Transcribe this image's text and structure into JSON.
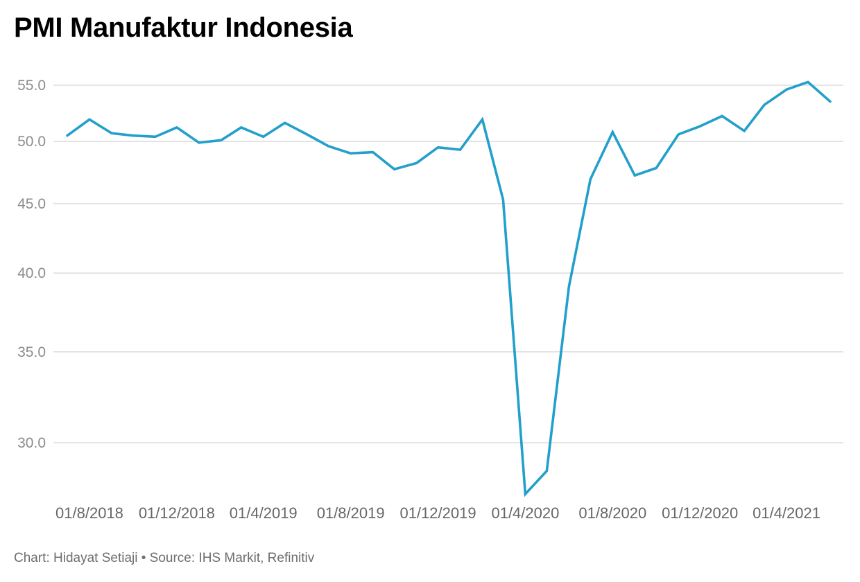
{
  "chart_data": {
    "type": "line",
    "title": "PMI Manufaktur Indonesia",
    "xlabel": "",
    "ylabel": "",
    "y_ticks": [
      55,
      50,
      45,
      40,
      35,
      30
    ],
    "y_tick_labels": [
      "55.0",
      "50.0",
      "45.0",
      "40.0",
      "35.0",
      "30.0"
    ],
    "ylim": [
      27,
      56
    ],
    "y_scale": "log",
    "grid": true,
    "legend": "none",
    "x": [
      "2018-07-01",
      "2018-08-01",
      "2018-09-01",
      "2018-10-01",
      "2018-11-01",
      "2018-12-01",
      "2019-01-01",
      "2019-02-01",
      "2019-03-01",
      "2019-04-01",
      "2019-05-01",
      "2019-06-01",
      "2019-07-01",
      "2019-08-01",
      "2019-09-01",
      "2019-10-01",
      "2019-11-01",
      "2019-12-01",
      "2020-01-01",
      "2020-02-01",
      "2020-03-01",
      "2020-04-01",
      "2020-05-01",
      "2020-06-01",
      "2020-07-01",
      "2020-08-01",
      "2020-09-01",
      "2020-10-01",
      "2020-11-01",
      "2020-12-01",
      "2021-01-01",
      "2021-02-01",
      "2021-03-01",
      "2021-04-01",
      "2021-05-01",
      "2021-06-01"
    ],
    "x_ticks": [
      "2018-08-01",
      "2018-12-01",
      "2019-04-01",
      "2019-08-01",
      "2019-12-01",
      "2020-04-01",
      "2020-08-01",
      "2020-12-01",
      "2021-04-01"
    ],
    "x_tick_labels": [
      "01/8/2018",
      "01/12/2018",
      "01/4/2019",
      "01/8/2019",
      "01/12/2019",
      "01/4/2020",
      "01/8/2020",
      "01/12/2020",
      "01/4/2021"
    ],
    "series": [
      {
        "color": "#229fcb",
        "values": [
          50.5,
          51.9,
          50.7,
          50.5,
          50.4,
          51.2,
          49.9,
          50.1,
          51.2,
          50.4,
          51.6,
          50.6,
          49.6,
          49.0,
          49.1,
          47.7,
          48.2,
          49.5,
          49.3,
          51.9,
          45.3,
          27.5,
          28.6,
          39.1,
          46.9,
          50.8,
          47.2,
          47.8,
          50.6,
          51.3,
          52.2,
          50.9,
          53.2,
          54.6,
          55.3,
          53.5
        ]
      }
    ]
  },
  "footer": {
    "text": "Chart: Hidayat Setiaji • Source: IHS Markit, Refinitiv"
  }
}
